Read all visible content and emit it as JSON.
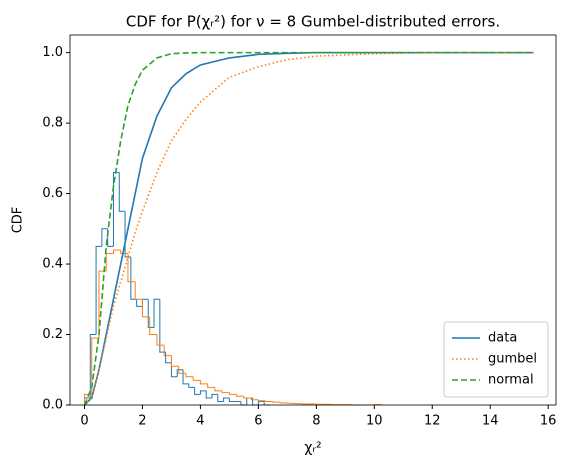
{
  "chart_data": {
    "type": "line",
    "title": "CDF for P(χᵣ²) for ν = 8 Gumbel-distributed errors.",
    "xlabel": "χᵣ²",
    "ylabel": "CDF",
    "xlim": [
      -0.5,
      16.27
    ],
    "ylim": [
      0,
      1.05
    ],
    "xticks": [
      0,
      2,
      4,
      6,
      8,
      10,
      12,
      14,
      16
    ],
    "yticks": [
      {
        "value": 0,
        "label": "0.0"
      },
      {
        "value": 0.2,
        "label": "0.2"
      },
      {
        "value": 0.4,
        "label": "0.4"
      },
      {
        "value": 0.6,
        "label": "0.6"
      },
      {
        "value": 0.8,
        "label": "0.8"
      },
      {
        "value": 1,
        "label": "1.0"
      }
    ],
    "grid": false,
    "legend": "lower right",
    "x": [
      0,
      0.25,
      0.5,
      0.75,
      1,
      1.25,
      1.5,
      1.75,
      2,
      2.5,
      3,
      3.5,
      4,
      5,
      6,
      7,
      8,
      10,
      12,
      15.5
    ],
    "series": [
      {
        "name": "data",
        "color": "#1f77b4",
        "linestyle": "solid",
        "values": [
          0,
          0.02,
          0.1,
          0.2,
          0.3,
          0.4,
          0.5,
          0.6,
          0.7,
          0.82,
          0.9,
          0.94,
          0.965,
          0.985,
          0.995,
          0.998,
          1.0,
          1.0,
          1.0,
          1.0
        ]
      },
      {
        "name": "gumbel",
        "color": "#ff7f0e",
        "linestyle": "dotted",
        "values": [
          0,
          0.02,
          0.1,
          0.19,
          0.28,
          0.35,
          0.42,
          0.49,
          0.55,
          0.66,
          0.75,
          0.81,
          0.86,
          0.93,
          0.96,
          0.98,
          0.99,
          0.997,
          1.0,
          1.0
        ]
      },
      {
        "name": "normal",
        "color": "#2ca02c",
        "linestyle": "dashed",
        "values": [
          0,
          0.05,
          0.2,
          0.45,
          0.62,
          0.75,
          0.85,
          0.91,
          0.95,
          0.985,
          0.997,
          0.999,
          1.0,
          1.0,
          1.0,
          1.0,
          1.0,
          1.0,
          1.0,
          1.0
        ]
      }
    ],
    "histograms": [
      {
        "color": "#1f77b4",
        "bins": [
          0,
          0.2,
          0.4,
          0.6,
          0.8,
          1.0,
          1.2,
          1.4,
          1.6,
          1.8,
          2.0,
          2.2,
          2.4,
          2.6,
          2.8,
          3.0,
          3.2,
          3.4,
          3.6,
          3.8,
          4.0,
          4.2,
          4.4,
          4.6,
          4.8,
          5.0,
          5.2,
          5.4,
          5.6,
          5.8,
          6.0,
          6.2,
          6.4
        ],
        "values": [
          0.02,
          0.2,
          0.45,
          0.5,
          0.45,
          0.66,
          0.55,
          0.42,
          0.3,
          0.28,
          0.3,
          0.22,
          0.3,
          0.15,
          0.12,
          0.08,
          0.1,
          0.06,
          0.05,
          0.03,
          0.04,
          0.02,
          0.03,
          0.01,
          0.02,
          0.01,
          0.01,
          0,
          0.02,
          0,
          0.01,
          0
        ]
      },
      {
        "color": "#ff7f0e",
        "bins": [
          0,
          0.25,
          0.5,
          0.75,
          1.0,
          1.25,
          1.5,
          1.75,
          2.0,
          2.25,
          2.5,
          2.75,
          3.0,
          3.25,
          3.5,
          3.75,
          4.0,
          4.25,
          4.5,
          4.75,
          5.0,
          5.25,
          5.5,
          5.75,
          6.0,
          6.25,
          6.5,
          6.75,
          7.0,
          7.25,
          7.5,
          7.75,
          8.0,
          8.25,
          8.5,
          8.75,
          9.0,
          9.25,
          9.5,
          9.75,
          10.0,
          10.25
        ],
        "values": [
          0.03,
          0.19,
          0.38,
          0.43,
          0.44,
          0.43,
          0.35,
          0.3,
          0.25,
          0.2,
          0.17,
          0.14,
          0.11,
          0.09,
          0.08,
          0.07,
          0.06,
          0.05,
          0.04,
          0.035,
          0.03,
          0.025,
          0.02,
          0.015,
          0.012,
          0.01,
          0.008,
          0.006,
          0.005,
          0.004,
          0.003,
          0.003,
          0.002,
          0.002,
          0.001,
          0.001,
          0.001,
          0,
          0,
          0,
          0.001
        ]
      }
    ]
  }
}
